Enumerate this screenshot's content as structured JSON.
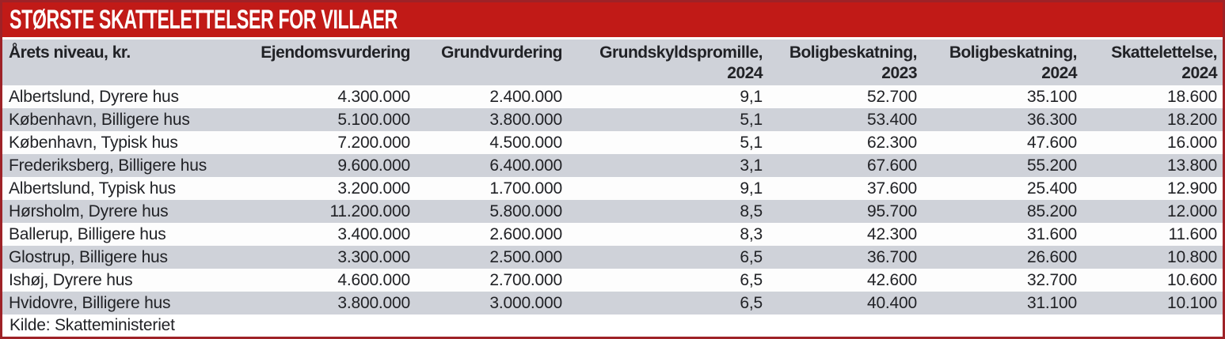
{
  "colors": {
    "banner_bg": "#c11a17",
    "outer_border": "#9e2227",
    "stripe_gray": "#cfd2d9",
    "header_bg": "#cfd2d9",
    "text": "#212226",
    "title_text": "#ffffff"
  },
  "header": {
    "columns": [
      {
        "label": "Årets niveau, kr.",
        "line2": ""
      },
      {
        "label": "Ejendomsvurdering",
        "line2": ""
      },
      {
        "label": "Grundvurdering",
        "line2": ""
      },
      {
        "label": "Grundskyldspromille,",
        "line2": "2024"
      },
      {
        "label": "Boligbeskatning,",
        "line2": "2023"
      },
      {
        "label": "Boligbeskatning,",
        "line2": "2024"
      },
      {
        "label": "Skattelettelse,",
        "line2": "2024"
      }
    ]
  },
  "chart_data": {
    "type": "table",
    "title": "STØRSTE SKATTELETTELSER FOR VILLAER",
    "columns": [
      "Årets niveau, kr.",
      "Ejendomsvurdering",
      "Grundvurdering",
      "Grundskyldspromille, 2024",
      "Boligbeskatning, 2023",
      "Boligbeskatning, 2024",
      "Skattelettelse, 2024"
    ],
    "rows": [
      [
        "Albertslund, Dyrere hus",
        "4.300.000",
        "2.400.000",
        "9,1",
        "52.700",
        "35.100",
        "18.600"
      ],
      [
        "København, Billigere hus",
        "5.100.000",
        "3.800.000",
        "5,1",
        "53.400",
        "36.300",
        "18.200"
      ],
      [
        "København, Typisk hus",
        "7.200.000",
        "4.500.000",
        "5,1",
        "62.300",
        "47.600",
        "16.000"
      ],
      [
        "Frederiksberg, Billigere hus",
        "9.600.000",
        "6.400.000",
        "3,1",
        "67.600",
        "55.200",
        "13.800"
      ],
      [
        "Albertslund, Typisk hus",
        "3.200.000",
        "1.700.000",
        "9,1",
        "37.600",
        "25.400",
        "12.900"
      ],
      [
        "Hørsholm, Dyrere hus",
        "11.200.000",
        "5.800.000",
        "8,5",
        "95.700",
        "85.200",
        "12.000"
      ],
      [
        "Ballerup, Billigere hus",
        "3.400.000",
        "2.600.000",
        "8,3",
        "42.300",
        "31.600",
        "11.600"
      ],
      [
        "Glostrup, Billigere hus",
        "3.300.000",
        "2.500.000",
        "6,5",
        "36.700",
        "26.600",
        "10.800"
      ],
      [
        "Ishøj, Dyrere hus",
        "4.600.000",
        "2.700.000",
        "6,5",
        "42.600",
        "32.700",
        "10.600"
      ],
      [
        "Hvidovre, Billigere hus",
        "3.800.000",
        "3.000.000",
        "6,5",
        "40.400",
        "31.100",
        "10.100"
      ]
    ],
    "source": "Kilde: Skatteministeriet"
  }
}
